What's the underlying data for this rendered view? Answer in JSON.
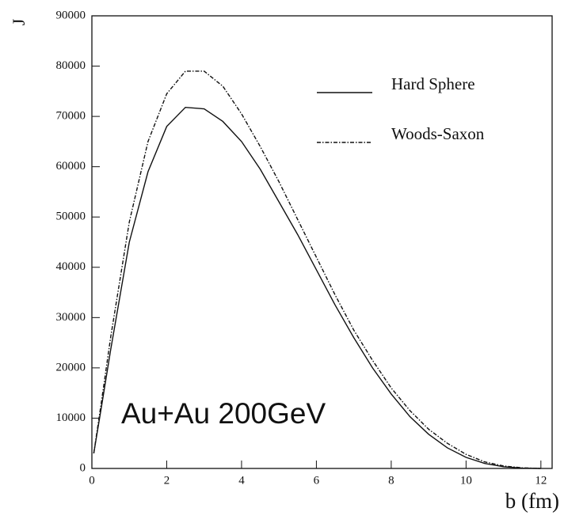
{
  "chart_data": {
    "type": "line",
    "y_label": "J",
    "x_label": "b (fm)",
    "annotation": "Au+Au 200GeV",
    "x": [
      0.05,
      0.25,
      0.5,
      1,
      1.5,
      2,
      2.5,
      3,
      3.5,
      4,
      4.5,
      5,
      5.5,
      6,
      6.5,
      7,
      7.5,
      8,
      8.5,
      9,
      9.5,
      10,
      10.5,
      11,
      11.5,
      12
    ],
    "series": [
      {
        "name": "Hard Sphere",
        "color": "#111111",
        "style": "solid",
        "values": [
          3000,
          12000,
          23500,
          45000,
          59000,
          68000,
          71800,
          71500,
          69000,
          65000,
          59500,
          53000,
          46500,
          39500,
          32500,
          26000,
          20000,
          14800,
          10300,
          6800,
          4100,
          2200,
          1000,
          350,
          70,
          0
        ]
      },
      {
        "name": "Woods-Saxon",
        "color": "#111111",
        "style": "dashdot",
        "values": [
          3000,
          13000,
          26000,
          49000,
          65000,
          74500,
          79000,
          79000,
          76000,
          70500,
          64000,
          57000,
          49500,
          42000,
          34500,
          27500,
          21500,
          16000,
          11500,
          7800,
          5000,
          2800,
          1300,
          500,
          120,
          0
        ]
      }
    ],
    "xlim": [
      0,
      12.3
    ],
    "ylim": [
      0,
      90000
    ],
    "xticks": [
      0,
      2,
      4,
      6,
      8,
      10,
      12
    ],
    "yticks": [
      0,
      10000,
      20000,
      30000,
      40000,
      50000,
      60000,
      70000,
      80000,
      90000
    ]
  }
}
